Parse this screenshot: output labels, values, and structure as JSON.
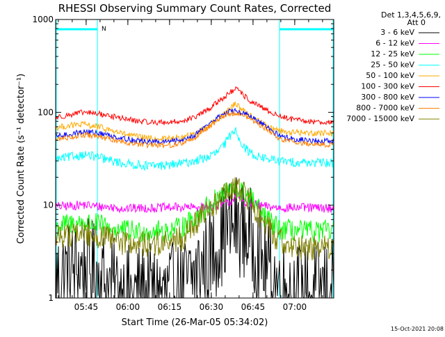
{
  "chart_data": {
    "type": "line",
    "title": "RHESSI Observing Summary Count Rates, Corrected",
    "xlabel": "Start Time (26-Mar-05 05:34:02)",
    "ylabel": "Corrected Count Rate (s⁻¹ detector⁻¹)",
    "yscale": "log",
    "ylim": [
      1,
      1000
    ],
    "xlim_minutes": [
      0,
      100
    ],
    "x_ticks": [
      {
        "label": "05:45",
        "minute": 10.97
      },
      {
        "label": "06:00",
        "minute": 25.97
      },
      {
        "label": "06:15",
        "minute": 40.97
      },
      {
        "label": "06:30",
        "minute": 55.97
      },
      {
        "label": "06:45",
        "minute": 70.97
      },
      {
        "label": "07:00",
        "minute": 85.97
      }
    ],
    "y_ticks": [
      {
        "label": "1",
        "value": 1
      },
      {
        "label": "10",
        "value": 10
      },
      {
        "label": "100",
        "value": 100
      },
      {
        "label": "1000",
        "value": 1000
      }
    ],
    "legend_header": [
      "Det 1,3,4,5,6,9,",
      "Att 0"
    ],
    "legend_position": "right",
    "night_flag_label": "N",
    "series": [
      {
        "name": "3 - 6 keV",
        "color": "#000000",
        "minutes": [
          0,
          5,
          10,
          15,
          20,
          25,
          30,
          35,
          40,
          45,
          50,
          55,
          57,
          60,
          63,
          65,
          67,
          70,
          75,
          80,
          85,
          90,
          95,
          100
        ],
        "values": [
          1.6,
          2,
          2.1,
          1.9,
          1.3,
          1.1,
          1.1,
          1.1,
          1.1,
          1.2,
          1.8,
          2.6,
          3.3,
          4.8,
          6,
          6.3,
          5.6,
          4.5,
          2.3,
          1.4,
          1.2,
          1.2,
          1.2,
          1.3
        ]
      },
      {
        "name": "6 - 12 keV",
        "color": "#ff00ff",
        "minutes": [
          0,
          5,
          10,
          15,
          20,
          25,
          30,
          35,
          40,
          45,
          50,
          55,
          60,
          63,
          65,
          67,
          70,
          75,
          80,
          85,
          90,
          95,
          100
        ],
        "values": [
          9.6,
          9.8,
          10.1,
          9.7,
          9.5,
          9.2,
          9.3,
          9.3,
          9.4,
          9.5,
          9.4,
          9.6,
          10.2,
          11,
          13,
          11.5,
          10.2,
          9.7,
          9.4,
          9.4,
          9.4,
          9.3,
          9.3
        ]
      },
      {
        "name": "12 - 25 keV",
        "color": "#00ff00",
        "minutes": [
          0,
          5,
          10,
          15,
          20,
          25,
          30,
          35,
          40,
          45,
          50,
          55,
          60,
          63,
          65,
          67,
          70,
          75,
          80,
          85,
          90,
          95,
          100
        ],
        "values": [
          5.8,
          6.3,
          6.5,
          6.2,
          5.6,
          5.3,
          5.2,
          5.2,
          5.3,
          5.7,
          7.2,
          10,
          13,
          14.3,
          14.7,
          14,
          12,
          7.5,
          5.6,
          5.3,
          5.2,
          5.2,
          5.3
        ]
      },
      {
        "name": "25 - 50 keV",
        "color": "#00ffff",
        "minutes": [
          0,
          5,
          10,
          15,
          20,
          25,
          30,
          35,
          40,
          45,
          50,
          55,
          58,
          61,
          63,
          64.5,
          66,
          68,
          71,
          75,
          80,
          85,
          90,
          95,
          100
        ],
        "values": [
          31,
          33,
          35,
          33,
          30,
          28,
          27,
          26.5,
          27,
          28,
          30,
          33,
          37,
          46,
          58,
          66,
          53,
          41,
          35,
          32,
          30,
          29,
          29,
          28.5,
          28.5
        ]
      },
      {
        "name": "50 - 100 keV",
        "color": "#ffaa00",
        "minutes": [
          0,
          5,
          10,
          15,
          20,
          25,
          30,
          35,
          40,
          45,
          50,
          55,
          60,
          63,
          65,
          67,
          70,
          75,
          80,
          85,
          90,
          95,
          100
        ],
        "values": [
          68,
          72,
          74,
          70,
          64,
          58,
          54,
          52,
          52,
          53,
          58,
          72,
          92,
          112,
          125,
          108,
          92,
          74,
          64,
          61,
          60,
          60,
          60
        ]
      },
      {
        "name": "100 - 300 keV",
        "color": "#ff0000",
        "minutes": [
          0,
          5,
          10,
          15,
          20,
          25,
          30,
          35,
          40,
          45,
          50,
          55,
          60,
          63,
          65,
          67,
          70,
          75,
          80,
          85,
          90,
          95,
          100
        ],
        "values": [
          88,
          94,
          100,
          97,
          91,
          85,
          80,
          78,
          78,
          80,
          88,
          108,
          142,
          165,
          178,
          158,
          132,
          108,
          92,
          84,
          80,
          79,
          78
        ]
      },
      {
        "name": "300 - 800 keV",
        "color": "#0000ff",
        "minutes": [
          0,
          5,
          10,
          15,
          20,
          25,
          30,
          35,
          40,
          45,
          50,
          55,
          60,
          63,
          65,
          67,
          70,
          75,
          80,
          85,
          90,
          95,
          100
        ],
        "values": [
          55,
          58,
          62,
          60,
          56,
          52,
          49,
          48,
          48,
          50,
          57,
          75,
          95,
          103,
          103,
          99,
          90,
          72,
          57,
          52,
          50,
          49,
          49
        ]
      },
      {
        "name": "800 - 7000 keV",
        "color": "#ff8000",
        "minutes": [
          0,
          5,
          10,
          15,
          20,
          25,
          30,
          35,
          40,
          45,
          50,
          55,
          60,
          63,
          65,
          67,
          70,
          75,
          80,
          85,
          90,
          95,
          100
        ],
        "values": [
          51,
          54,
          57,
          55,
          51,
          48,
          45,
          44,
          44,
          46,
          53,
          70,
          90,
          98,
          99,
          94,
          85,
          68,
          53,
          48,
          46,
          45,
          45
        ]
      },
      {
        "name": "7000 - 15000 keV",
        "color": "#808000",
        "minutes": [
          0,
          5,
          10,
          15,
          20,
          25,
          30,
          35,
          40,
          45,
          50,
          55,
          60,
          63,
          65,
          67,
          70,
          75,
          80,
          85,
          90,
          95,
          100
        ],
        "values": [
          4.6,
          4.9,
          5,
          4.7,
          4.2,
          3.9,
          3.8,
          3.8,
          3.9,
          4.3,
          6,
          9,
          12.5,
          14.5,
          15,
          14,
          11,
          6.3,
          4.2,
          3.7,
          3.5,
          3.5,
          3.5
        ]
      }
    ],
    "saa_segments": [
      {
        "start": 0,
        "end": 15
      },
      {
        "start": 80.5,
        "end": 100
      }
    ],
    "night_segments": [
      {
        "start": 15,
        "end": 80.5
      }
    ],
    "footer_timestamp": "15-Oct-2021 20:08"
  }
}
